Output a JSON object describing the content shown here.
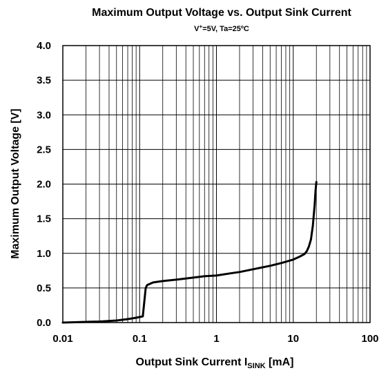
{
  "chart_data": {
    "type": "line",
    "title": "Maximum Output Voltage vs. Output Sink Current",
    "subtitle": {
      "prefix": "V",
      "superscript": "+",
      "rest": "=5V, Ta=25ºC"
    },
    "xlabel": {
      "main": "Output Sink Current I",
      "subscript": "SINK",
      "suffix": " [mA]"
    },
    "ylabel": "Maximum Output Voltage [V]",
    "xscale": "log",
    "xlim": [
      0.01,
      100
    ],
    "ylim": [
      0,
      4.0
    ],
    "x_ticks": [
      0.01,
      0.1,
      1,
      10,
      100
    ],
    "x_tick_labels": [
      "0.01",
      "0.1",
      "1",
      "10",
      "100"
    ],
    "y_ticks": [
      0,
      0.5,
      1.0,
      1.5,
      2.0,
      2.5,
      3.0,
      3.5,
      4.0
    ],
    "y_tick_labels": [
      "0.0",
      "0.5",
      "1.0",
      "1.5",
      "2.0",
      "2.5",
      "3.0",
      "3.5",
      "4.0"
    ],
    "grid": true,
    "series_color": "#000000",
    "series": [
      {
        "x": [
          0.01,
          0.02,
          0.03,
          0.05,
          0.07,
          0.09,
          0.11,
          0.115,
          0.12,
          0.125,
          0.13,
          0.15,
          0.2,
          0.3,
          0.5,
          0.7,
          1,
          1.5,
          2,
          3,
          5,
          7,
          10,
          12,
          14,
          15,
          16,
          17,
          18,
          19,
          19.5,
          20
        ],
        "y": [
          0.0,
          0.01,
          0.015,
          0.03,
          0.05,
          0.07,
          0.09,
          0.3,
          0.5,
          0.54,
          0.55,
          0.58,
          0.6,
          0.62,
          0.65,
          0.67,
          0.68,
          0.71,
          0.73,
          0.77,
          0.82,
          0.86,
          0.91,
          0.95,
          0.99,
          1.03,
          1.1,
          1.2,
          1.4,
          1.7,
          1.9,
          2.03
        ]
      }
    ]
  }
}
